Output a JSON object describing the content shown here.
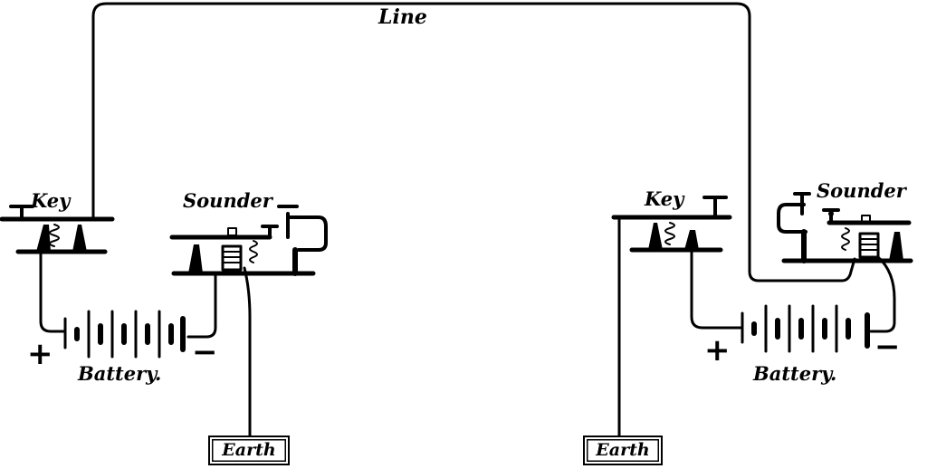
{
  "labels": {
    "line": "Line",
    "left": {
      "key": "Key",
      "sounder": "Sounder",
      "battery": "Battery.",
      "plus": "+",
      "minus": "−",
      "earth": "Earth"
    },
    "right": {
      "key": "Key",
      "sounder": "Sounder",
      "battery": "Battery.",
      "plus": "+",
      "minus": "−",
      "earth": "Earth"
    }
  }
}
